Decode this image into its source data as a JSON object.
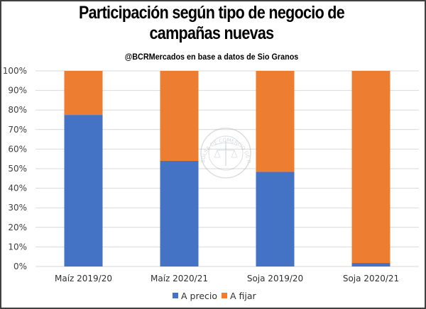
{
  "chart_data": {
    "type": "bar",
    "stacked": true,
    "percent_stacked": true,
    "title": "Participación según tipo de negocio de campañas nuevas",
    "title_lines": [
      "Participación según tipo de negocio de",
      "campañas nuevas"
    ],
    "subtitle": "@BCRMercados  en base a datos de Sio Granos",
    "xlabel": "",
    "ylabel": "",
    "ylim": [
      0,
      100
    ],
    "yticks": [
      0,
      10,
      20,
      30,
      40,
      50,
      60,
      70,
      80,
      90,
      100
    ],
    "ytick_labels": [
      "0%",
      "10%",
      "20%",
      "30%",
      "40%",
      "50%",
      "60%",
      "70%",
      "80%",
      "90%",
      "100%"
    ],
    "grid": true,
    "legend_position": "bottom",
    "categories": [
      "Maíz 2019/20",
      "Maíz 2020/21",
      "Soja 2019/20",
      "Soja 2020/21"
    ],
    "series": [
      {
        "name": "A precio",
        "color": "#4472C4",
        "values": [
          77.5,
          54.0,
          48.4,
          1.8
        ]
      },
      {
        "name": "A fijar",
        "color": "#ED7D31",
        "values": [
          22.5,
          46.0,
          51.6,
          98.2
        ]
      }
    ],
    "watermark": "BOLSA DE COMERCIO DE ROSARIO"
  }
}
